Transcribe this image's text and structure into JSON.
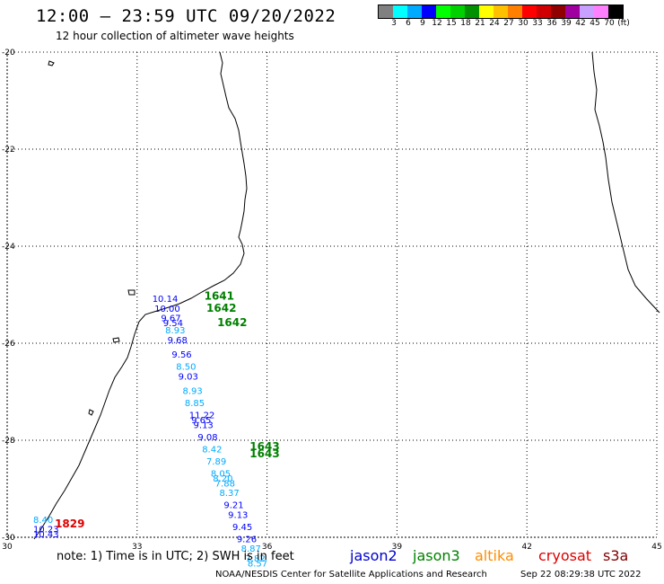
{
  "header": {
    "title": "12:00 – 23:59 UTC 09/20/2022",
    "subtitle": "12 hour collection of altimeter wave heights"
  },
  "legend": {
    "colors": [
      "#808080",
      "#00ffff",
      "#00aaff",
      "#0000ff",
      "#00ff00",
      "#00d000",
      "#009000",
      "#ffff00",
      "#ffc000",
      "#ff8000",
      "#ff0000",
      "#d00000",
      "#900000",
      "#a000a0",
      "#c8a0ff",
      "#ff80ff",
      "#000000"
    ],
    "labels": [
      "3",
      "6",
      "9",
      "12",
      "15",
      "18",
      "21",
      "24",
      "27",
      "30",
      "33",
      "36",
      "39",
      "42",
      "45",
      "70",
      "(ft)"
    ]
  },
  "map": {
    "lon_ticks": [
      "30",
      "33",
      "36",
      "39",
      "42",
      "45"
    ],
    "lat_ticks": [
      "-20",
      "-22",
      "-24",
      "-26",
      "-28",
      "-30"
    ],
    "lon_range": [
      30,
      45
    ],
    "lat_range": [
      -30,
      -20
    ],
    "coast_color": "#000000",
    "grid": "dotted"
  },
  "passes": [
    {
      "sat": "jason3",
      "time": "1641",
      "lon": 34.55,
      "lat": -25.1
    },
    {
      "sat": "jason3",
      "time": "1642",
      "lon": 34.6,
      "lat": -25.35
    },
    {
      "sat": "jason3",
      "time": "1642",
      "lon": 34.85,
      "lat": -25.65
    },
    {
      "sat": "jason3",
      "time": "1643",
      "lon": 35.6,
      "lat": -28.2
    },
    {
      "sat": "jason3",
      "time": "1643",
      "lon": 35.6,
      "lat": -28.35
    },
    {
      "sat": "cryosat",
      "time": "1829",
      "lon": 31.1,
      "lat": -29.8
    }
  ],
  "observations": [
    {
      "v": "10.14",
      "c": "#0000ff",
      "lon": 33.35,
      "lat": -25.15
    },
    {
      "v": "10.00",
      "c": "#0000ff",
      "lon": 33.4,
      "lat": -25.35
    },
    {
      "v": "9.67",
      "c": "#0000ff",
      "lon": 33.55,
      "lat": -25.55
    },
    {
      "v": "9.54",
      "c": "#0000ff",
      "lon": 33.6,
      "lat": -25.65
    },
    {
      "v": "8.93",
      "c": "#00aaff",
      "lon": 33.65,
      "lat": -25.8
    },
    {
      "v": "9.68",
      "c": "#0000ff",
      "lon": 33.7,
      "lat": -26.0
    },
    {
      "v": "9.56",
      "c": "#0000ff",
      "lon": 33.8,
      "lat": -26.3
    },
    {
      "v": "8.50",
      "c": "#00aaff",
      "lon": 33.9,
      "lat": -26.55
    },
    {
      "v": "9.03",
      "c": "#0000ff",
      "lon": 33.95,
      "lat": -26.75
    },
    {
      "v": "8.93",
      "c": "#00aaff",
      "lon": 34.05,
      "lat": -27.05
    },
    {
      "v": "8.85",
      "c": "#00aaff",
      "lon": 34.1,
      "lat": -27.3
    },
    {
      "v": "11.22",
      "c": "#0000ff",
      "lon": 34.2,
      "lat": -27.55
    },
    {
      "v": "9.65",
      "c": "#0000ff",
      "lon": 34.25,
      "lat": -27.65
    },
    {
      "v": "9.13",
      "c": "#0000ff",
      "lon": 34.3,
      "lat": -27.75
    },
    {
      "v": "9.08",
      "c": "#0000ff",
      "lon": 34.4,
      "lat": -28.0
    },
    {
      "v": "8.42",
      "c": "#00aaff",
      "lon": 34.5,
      "lat": -28.25
    },
    {
      "v": "7.89",
      "c": "#00aaff",
      "lon": 34.6,
      "lat": -28.5
    },
    {
      "v": "8.05",
      "c": "#00aaff",
      "lon": 34.7,
      "lat": -28.75
    },
    {
      "v": "8.20",
      "c": "#00aaff",
      "lon": 34.75,
      "lat": -28.85
    },
    {
      "v": "7.88",
      "c": "#00aaff",
      "lon": 34.8,
      "lat": -28.95
    },
    {
      "v": "8.37",
      "c": "#00aaff",
      "lon": 34.9,
      "lat": -29.15
    },
    {
      "v": "9.21",
      "c": "#0000ff",
      "lon": 35.0,
      "lat": -29.4
    },
    {
      "v": "9.13",
      "c": "#0000ff",
      "lon": 35.1,
      "lat": -29.6
    },
    {
      "v": "9.45",
      "c": "#0000ff",
      "lon": 35.2,
      "lat": -29.85
    },
    {
      "v": "9.26",
      "c": "#0000ff",
      "lon": 35.3,
      "lat": -30.1
    },
    {
      "v": "8.87",
      "c": "#00aaff",
      "lon": 35.4,
      "lat": -30.3
    },
    {
      "v": "7.82",
      "c": "#00aaff",
      "lon": 35.5,
      "lat": -30.5
    },
    {
      "v": "8.57",
      "c": "#00aaff",
      "lon": 35.55,
      "lat": -30.6
    },
    {
      "v": "8.40",
      "c": "#00aaff",
      "lon": 30.6,
      "lat": -29.7
    },
    {
      "v": "10.23",
      "c": "#0000ff",
      "lon": 30.6,
      "lat": -29.9
    },
    {
      "v": "10.43",
      "c": "#0000ff",
      "lon": 30.6,
      "lat": -30.0
    }
  ],
  "note": "note:  1) Time is in UTC; 2) SWH is in feet",
  "satellites": [
    {
      "name": "jason2",
      "color": "#0000cc"
    },
    {
      "name": "jason3",
      "color": "#008000"
    },
    {
      "name": "altika",
      "color": "#ff8c00"
    },
    {
      "name": "cryosat",
      "color": "#dd0000"
    },
    {
      "name": "s3a",
      "color": "#800000"
    }
  ],
  "footer": "NOAA/NESDIS Center for Satellite Applications and Research",
  "timestamp": "Sep 22 08:29:38 UTC 2022"
}
